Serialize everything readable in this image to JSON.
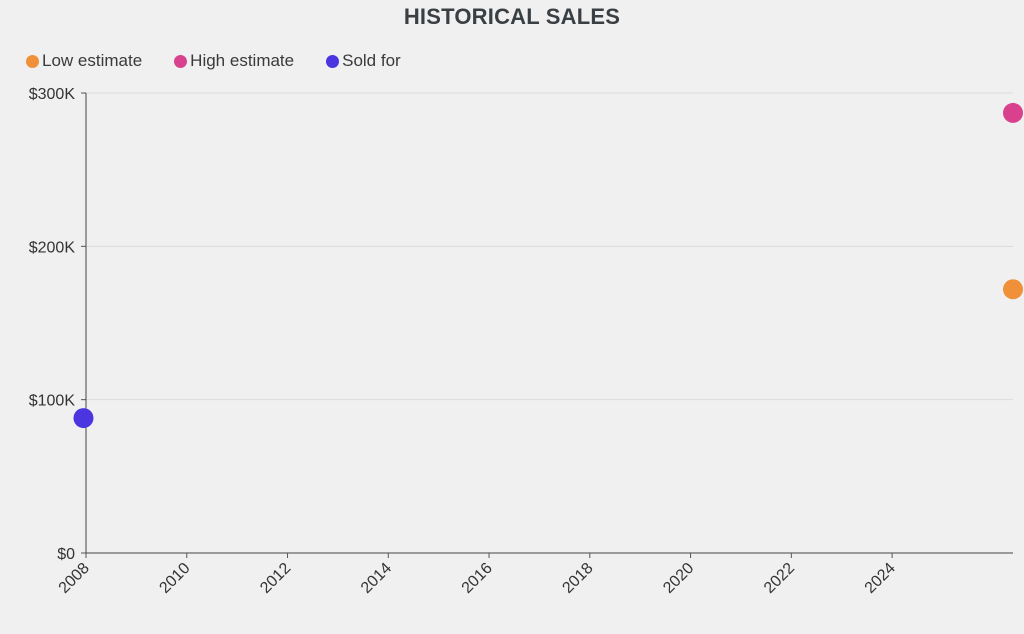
{
  "chart_data": {
    "type": "scatter",
    "title": "HISTORICAL SALES",
    "xlabel": "",
    "ylabel": "",
    "x_ticks": [
      "2008",
      "2010",
      "2012",
      "2014",
      "2016",
      "2018",
      "2020",
      "2022",
      "2024"
    ],
    "x_range": [
      2008,
      2026.4
    ],
    "y_ticks": [
      {
        "value": 0,
        "label": "$0"
      },
      {
        "value": 100000,
        "label": "$100K"
      },
      {
        "value": 200000,
        "label": "$200K"
      },
      {
        "value": 300000,
        "label": "$300K"
      }
    ],
    "ylim": [
      0,
      300000
    ],
    "grid": "horizontal",
    "legend_position": "top-left",
    "series": [
      {
        "name": "Low estimate",
        "color": "#f0913a",
        "points": [
          {
            "x": 2026.4,
            "y": 172000
          }
        ]
      },
      {
        "name": "High estimate",
        "color": "#d9418e",
        "points": [
          {
            "x": 2026.4,
            "y": 287000
          }
        ]
      },
      {
        "name": "Sold for",
        "color": "#4a35e0",
        "points": [
          {
            "x": 2007.95,
            "y": 88000
          }
        ]
      }
    ]
  }
}
